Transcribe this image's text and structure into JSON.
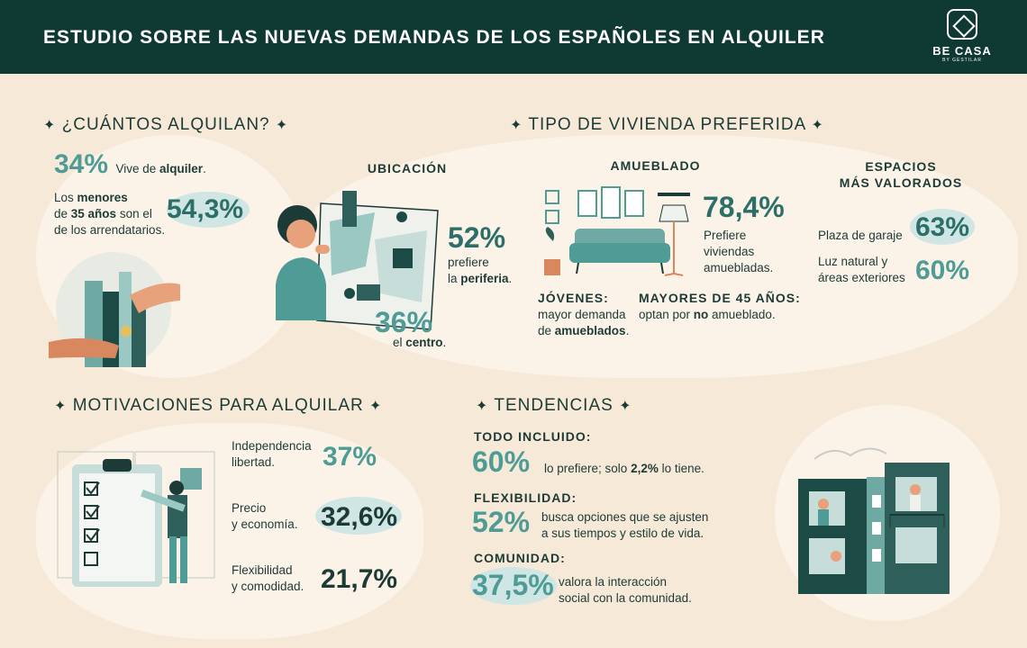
{
  "header": {
    "title": "ESTUDIO SOBRE LAS NUEVAS DEMANDAS DE LOS ESPAÑOLES EN ALQUILER",
    "brand": "BE CASA",
    "brand_sub": "BY GESTILAR"
  },
  "icons": [
    "sparkle-icon",
    "key-hand-icon",
    "map-person-icon",
    "sofa-icon",
    "clipboard-icon",
    "building-icon"
  ],
  "colors": {
    "header_bg": "#0f3a34",
    "accent": "#4f9c96",
    "page_bg": "#f6e9d8"
  },
  "cuantos": {
    "title": "¿CUÁNTOS ALQUILAN?",
    "stat1_value": "34%",
    "stat1_pre": "Vive de ",
    "stat1_bold": "alquiler",
    "stat1_post": ".",
    "stat2_l1_pre": "Los ",
    "stat2_l1_bold": "menores",
    "stat2_l2_pre": "de ",
    "stat2_l2_bold": "35 años",
    "stat2_l2_post": " son el",
    "stat2_l3": "de los arrendatarios.",
    "stat2_value": "54,3%"
  },
  "tipo": {
    "title": "TIPO DE VIVIENDA PREFERIDA",
    "ubicacion": {
      "heading": "UBICACIÓN",
      "v1": "52%",
      "v1_l1": "prefiere",
      "v1_l2_pre": "la ",
      "v1_l2_bold": "periferia",
      "v1_l2_post": ".",
      "v2": "36%",
      "v2_pre": "el ",
      "v2_bold": "centro",
      "v2_post": "."
    },
    "amueblado": {
      "heading": "AMUEBLADO",
      "value": "78,4%",
      "l1": "Prefiere",
      "l2": "viviendas",
      "l3": "amuebladas.",
      "jovenes_head": "JÓVENES:",
      "jovenes_l1": "mayor demanda",
      "jovenes_l2_pre": "de ",
      "jovenes_l2_bold": "amueblados",
      "jovenes_l2_post": ".",
      "mayores_head": "MAYORES DE 45 AÑOS:",
      "mayores_pre": "optan por ",
      "mayores_bold": "no",
      "mayores_post": " amueblado."
    },
    "espacios": {
      "heading_l1": "ESPACIOS",
      "heading_l2": "MÁS VALORADOS",
      "item1_label": "Plaza de garaje",
      "item1_value": "63%",
      "item2_l1": "Luz natural y",
      "item2_l2": "áreas exteriores",
      "item2_value": "60%"
    }
  },
  "motivaciones": {
    "title": "MOTIVACIONES PARA ALQUILAR",
    "items": [
      {
        "l1": "Independencia",
        "l2": "libertad.",
        "value": "37%"
      },
      {
        "l1": "Precio",
        "l2": "y economía.",
        "value": "32,6%"
      },
      {
        "l1": "Flexibilidad",
        "l2": "y comodidad.",
        "value": "21,7%"
      }
    ]
  },
  "tendencias": {
    "title": "TENDENCIAS",
    "t1_head": "TODO INCLUIDO:",
    "t1_value": "60%",
    "t1_pre": "lo prefiere; solo ",
    "t1_bold": "2,2%",
    "t1_post": " lo tiene.",
    "t2_head": "FLEXIBILIDAD:",
    "t2_value": "52%",
    "t2_l1": "busca opciones que se ajusten",
    "t2_l2": "a sus tiempos y estilo de vida.",
    "t3_head": "COMUNIDAD:",
    "t3_value": "37,5%",
    "t3_l1": "valora la interacción",
    "t3_l2": "social con la comunidad."
  }
}
